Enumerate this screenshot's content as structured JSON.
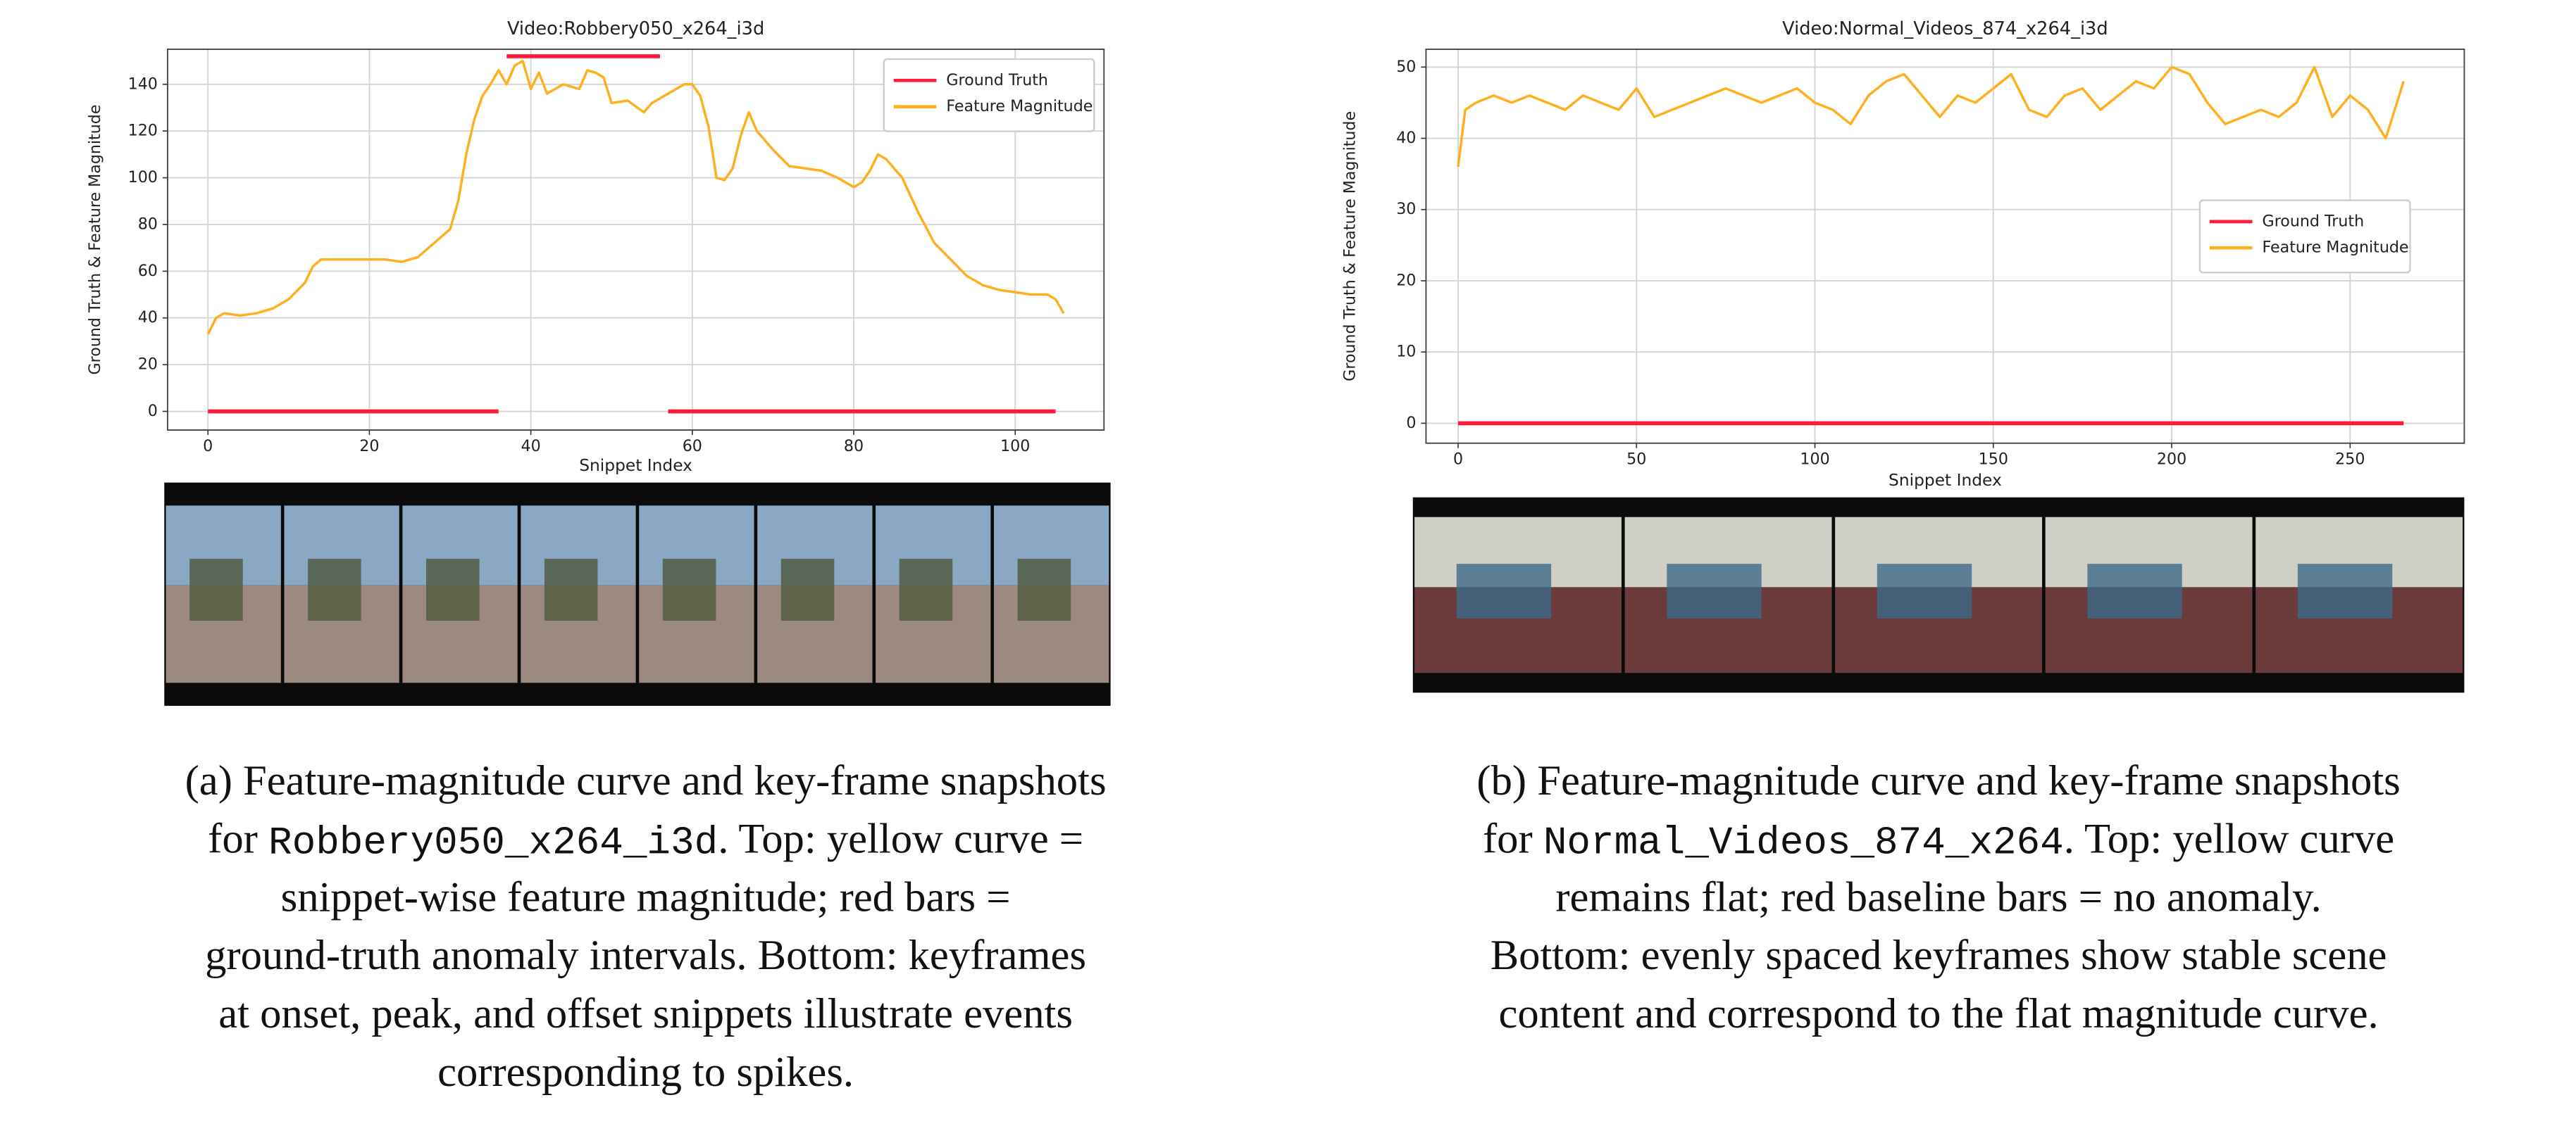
{
  "chart_data": [
    {
      "type": "line",
      "title": "Video:Robbery050_x264_i3d",
      "xlabel": "Snippet Index",
      "ylabel": "Ground Truth & Feature Magnitude",
      "xlim": [
        -5,
        111
      ],
      "xticks": [
        0,
        20,
        40,
        60,
        80,
        100
      ],
      "ylim": [
        -8,
        155
      ],
      "yticks": [
        0,
        20,
        40,
        60,
        80,
        100,
        120,
        140
      ],
      "grid": true,
      "legend": "upper right",
      "series": [
        {
          "name": "Ground Truth",
          "color": "#ff1a3c",
          "x": [
            0,
            36,
            36.5,
            37,
            56,
            56.5,
            57,
            105
          ],
          "values": [
            0,
            0,
            null,
            152,
            152,
            null,
            0,
            0
          ]
        },
        {
          "name": "Feature Magnitude",
          "color": "#ffb020",
          "x": [
            0,
            1,
            2,
            4,
            6,
            8,
            10,
            12,
            13,
            14,
            16,
            18,
            20,
            22,
            24,
            26,
            28,
            30,
            31,
            32,
            33,
            34,
            35,
            36,
            37,
            38,
            39,
            40,
            41,
            42,
            44,
            46,
            47,
            48,
            49,
            50,
            52,
            54,
            55,
            57,
            59,
            60,
            61,
            62,
            63,
            64,
            65,
            66,
            67,
            68,
            70,
            72,
            74,
            76,
            78,
            80,
            81,
            82,
            83,
            84,
            86,
            88,
            90,
            92,
            94,
            96,
            98,
            100,
            102,
            104,
            105,
            106
          ],
          "values": [
            33,
            40,
            42,
            41,
            42,
            44,
            48,
            55,
            62,
            65,
            65,
            65,
            65,
            65,
            64,
            66,
            72,
            78,
            90,
            110,
            125,
            135,
            140,
            146,
            140,
            148,
            150,
            138,
            145,
            136,
            140,
            138,
            146,
            145,
            143,
            132,
            133,
            128,
            132,
            136,
            140,
            140,
            135,
            122,
            100,
            99,
            104,
            118,
            128,
            120,
            112,
            105,
            104,
            103,
            100,
            96,
            98,
            103,
            110,
            108,
            100,
            85,
            72,
            65,
            58,
            54,
            52,
            51,
            50,
            50,
            48,
            42
          ]
        }
      ]
    },
    {
      "type": "line",
      "title": "Video:Normal_Videos_874_x264_i3d",
      "xlabel": "Snippet Index",
      "ylabel": "Ground Truth & Feature Magnitude",
      "xlim": [
        -9,
        282
      ],
      "xticks": [
        0,
        50,
        100,
        150,
        200,
        250
      ],
      "ylim": [
        -2.8,
        52.5
      ],
      "yticks": [
        0,
        10,
        20,
        30,
        40,
        50
      ],
      "grid": true,
      "legend": "center right",
      "series": [
        {
          "name": "Ground Truth",
          "color": "#ff1a3c",
          "x": [
            0,
            265
          ],
          "values": [
            0,
            0
          ]
        },
        {
          "name": "Feature Magnitude",
          "color": "#ffb020",
          "x": [
            0,
            2,
            5,
            10,
            15,
            20,
            25,
            30,
            35,
            40,
            45,
            50,
            55,
            60,
            65,
            70,
            75,
            80,
            85,
            90,
            95,
            100,
            105,
            110,
            115,
            120,
            125,
            130,
            135,
            140,
            145,
            150,
            155,
            160,
            165,
            170,
            175,
            180,
            185,
            190,
            195,
            200,
            205,
            210,
            215,
            220,
            225,
            230,
            235,
            240,
            245,
            250,
            255,
            260,
            265
          ],
          "values": [
            36,
            44,
            45,
            46,
            45,
            46,
            45,
            44,
            46,
            45,
            44,
            47,
            43,
            44,
            45,
            46,
            47,
            46,
            45,
            46,
            47,
            45,
            44,
            42,
            46,
            48,
            49,
            46,
            43,
            46,
            45,
            47,
            49,
            44,
            43,
            46,
            47,
            44,
            46,
            48,
            47,
            50,
            49,
            45,
            42,
            43,
            44,
            43,
            45,
            50,
            43,
            46,
            44,
            40,
            48
          ]
        }
      ]
    }
  ],
  "captions": [
    {
      "lines": [
        [
          "(a) Feature-magnitude curve and key-frame snapshots"
        ],
        [
          "for ",
          "Robbery050_x264_i3d",
          ". Top: yellow curve ="
        ],
        [
          "snippet-wise feature magnitude; red bars ="
        ],
        [
          "ground-truth anomaly intervals. Bottom: keyframes"
        ],
        [
          "at onset, peak, and offset snippets illustrate events"
        ],
        [
          "corresponding to spikes."
        ]
      ]
    },
    {
      "lines": [
        [
          "(b) Feature-magnitude curve and key-frame snapshots"
        ],
        [
          "for ",
          "Normal_Videos_874_x264",
          ". Top: yellow curve"
        ],
        [
          "remains flat; red baseline bars = no anomaly."
        ],
        [
          "Bottom: evenly spaced keyframes show stable scene"
        ],
        [
          "content and correspond to the flat magnitude curve."
        ]
      ]
    }
  ]
}
